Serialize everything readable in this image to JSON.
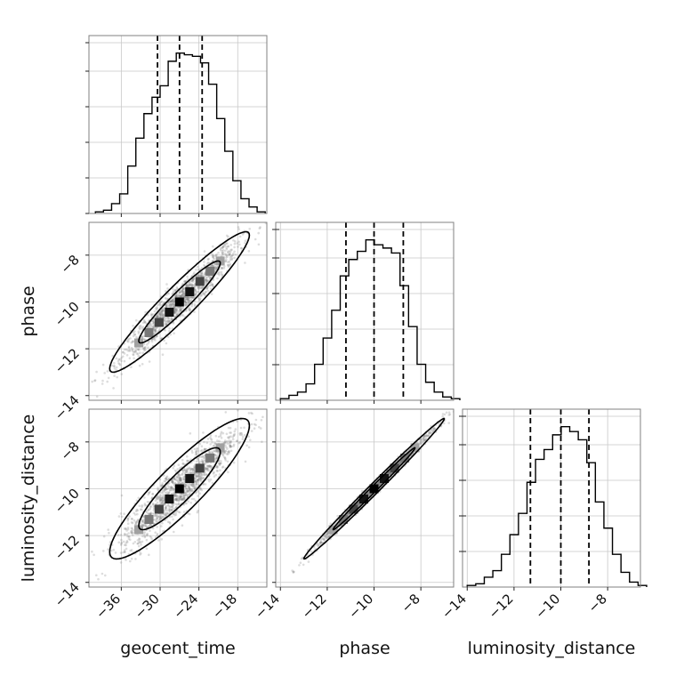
{
  "chart_data": {
    "type": "corner",
    "parameters": [
      "geocent_time",
      "phase",
      "luminosity_distance"
    ],
    "axis_labels": {
      "geocent_time": "geocent_time",
      "phase": "phase",
      "luminosity_distance": "luminosity_distance"
    },
    "ranges": {
      "geocent_time": [
        -41,
        -13.5
      ],
      "phase": [
        -14.2,
        -6.6
      ],
      "luminosity_distance": [
        -14.2,
        -6.6
      ]
    },
    "ticks": {
      "geocent_time": [
        -36,
        -30,
        -24,
        -18
      ],
      "phase": [
        -14,
        -12,
        -10,
        -8
      ],
      "luminosity_distance": [
        -14,
        -12,
        -10,
        -8
      ]
    },
    "tick_labels": {
      "geocent_time": [
        "−36",
        "−30",
        "−24",
        "−18"
      ],
      "phase": [
        "−14",
        "−12",
        "−10",
        "−8"
      ],
      "luminosity_distance": [
        "−14",
        "−12",
        "−10",
        "−8"
      ]
    },
    "histograms": {
      "geocent_time": {
        "bin_start": -40,
        "bin_width": 1.25,
        "counts": [
          0.01,
          0.02,
          0.06,
          0.12,
          0.29,
          0.46,
          0.61,
          0.71,
          0.78,
          0.93,
          0.98,
          0.97,
          0.96,
          0.92,
          0.79,
          0.58,
          0.38,
          0.2,
          0.09,
          0.04,
          0.01
        ],
        "quantiles": [
          -30.4,
          -27.0,
          -23.5
        ]
      },
      "phase": {
        "bin_start": -14.0,
        "bin_width": 0.365,
        "counts": [
          0.01,
          0.03,
          0.05,
          0.1,
          0.22,
          0.38,
          0.55,
          0.76,
          0.86,
          0.91,
          0.98,
          0.95,
          0.93,
          0.9,
          0.7,
          0.45,
          0.22,
          0.11,
          0.05,
          0.02,
          0.01
        ],
        "quantiles": [
          -11.2,
          -10.0,
          -8.75
        ]
      },
      "luminosity_distance": {
        "bin_start": -14.0,
        "bin_width": 0.365,
        "counts": [
          0.01,
          0.02,
          0.06,
          0.1,
          0.2,
          0.32,
          0.45,
          0.64,
          0.78,
          0.84,
          0.93,
          0.98,
          0.95,
          0.9,
          0.76,
          0.52,
          0.36,
          0.2,
          0.09,
          0.03,
          0.01
        ],
        "quantiles": [
          -11.3,
          -10.0,
          -8.8
        ]
      }
    },
    "pairs": [
      {
        "x": "geocent_time",
        "y": "phase",
        "x_mean": -27.0,
        "y_mean": -10.0,
        "x_sd": 4.5,
        "y_sd": 1.25,
        "correlation": 0.95
      },
      {
        "x": "geocent_time",
        "y": "luminosity_distance",
        "x_mean": -27.0,
        "y_mean": -10.0,
        "x_sd": 4.5,
        "y_sd": 1.25,
        "correlation": 0.9
      },
      {
        "x": "phase",
        "y": "luminosity_distance",
        "x_mean": -10.0,
        "y_mean": -10.0,
        "x_sd": 1.25,
        "y_sd": 1.25,
        "correlation": 0.995
      }
    ],
    "grid": true
  }
}
